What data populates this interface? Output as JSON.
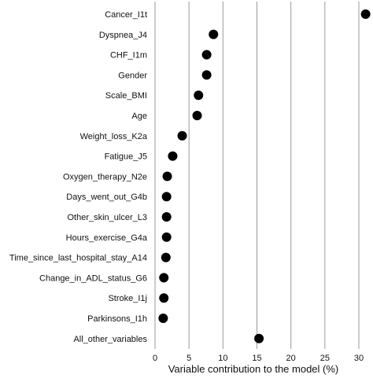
{
  "chart_data": {
    "type": "scatter",
    "title": "",
    "xlabel": "Variable contribution to the model (%)",
    "ylabel": "",
    "xlim": [
      0,
      30
    ],
    "xticks": [
      0,
      5,
      10,
      15,
      20,
      25,
      30
    ],
    "grid": "vertical",
    "categories": [
      "Cancer_I1t",
      "Dyspnea_J4",
      "CHF_I1m",
      "Gender",
      "Scale_BMI",
      "Age",
      "Weight_loss_K2a",
      "Fatigue_J5",
      "Oxygen_therapy_N2e",
      "Days_went_out_G4b",
      "Other_skin_ulcer_L3",
      "Hours_exercise_G4a",
      "Time_since_last_hospital_stay_A14",
      "Change_in_ADL_status_G6",
      "Stroke_I1j",
      "Parkinsons_I1h",
      "All_other_variables"
    ],
    "values": [
      31.0,
      8.6,
      7.6,
      7.6,
      6.4,
      6.2,
      4.0,
      2.6,
      1.8,
      1.7,
      1.7,
      1.7,
      1.6,
      1.3,
      1.3,
      1.2,
      15.3
    ],
    "colors": {
      "marker": "#000000",
      "grid": "#9a9a9a"
    }
  }
}
